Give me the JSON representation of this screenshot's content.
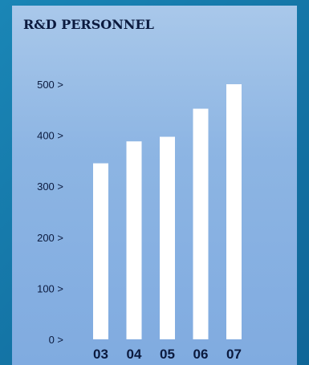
{
  "chart_data": {
    "type": "bar",
    "title": "R&D PERSONNEL",
    "categories": [
      "03",
      "04",
      "05",
      "06",
      "07"
    ],
    "values": [
      345,
      388,
      397,
      452,
      500
    ],
    "ylim": [
      0,
      500
    ],
    "yticks": [
      0,
      100,
      200,
      300,
      400,
      500
    ],
    "ytick_suffix": ">",
    "grid": false,
    "legend": "none",
    "colors": {
      "bar": "#ffffff",
      "title": "#0b1a3e",
      "tick": "#0b1a3e",
      "category": "#0b1a3e"
    }
  }
}
